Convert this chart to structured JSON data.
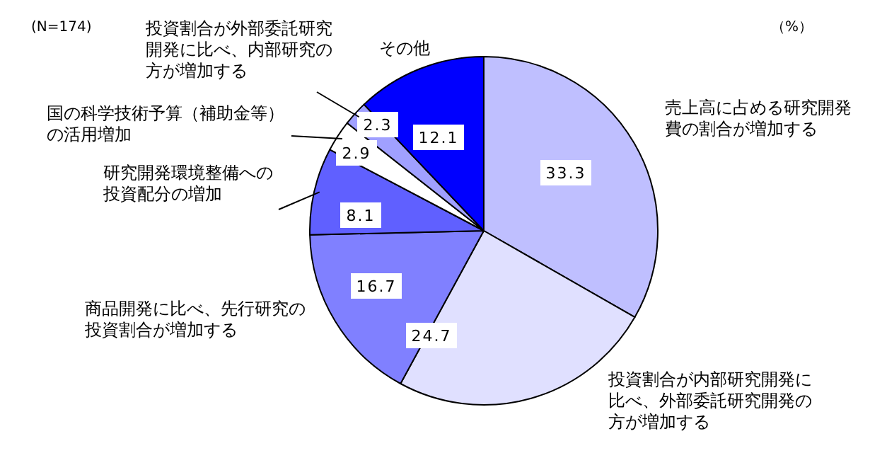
{
  "chart_data": {
    "type": "pie",
    "categories": [
      "売上高に占める研究開発費の割合が増加する",
      "投資割合が内部研究開発に比べ、外部委託研究開発の方が増加する",
      "商品開発に比べ、先行研究の投資割合が増加する",
      "研究開発環境整備への投資配分の増加",
      "国の科学技術予算（補助金等）の活用増加",
      "投資割合が外部委託研究開発に比べ、内部研究の方が増加する",
      "その他"
    ],
    "values": [
      33.3,
      24.7,
      16.7,
      8.1,
      2.9,
      2.3,
      12.1
    ],
    "colors": [
      "#bfbfff",
      "#e0e0ff",
      "#8080ff",
      "#6060ff",
      "#ffffff",
      "#a0a0ff",
      "#0000ff"
    ],
    "data_labels": true,
    "annotations": [
      "(N=174)",
      "（%）"
    ]
  }
}
